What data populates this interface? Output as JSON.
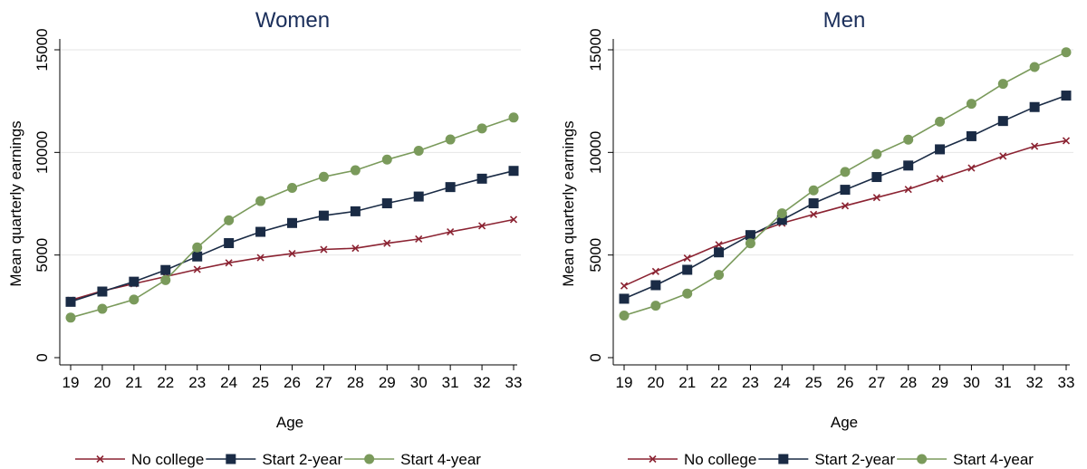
{
  "chart_data": [
    {
      "type": "line",
      "title": "Women",
      "xlabel": "Age",
      "ylabel": "Mean quarterly earnings",
      "x": [
        19,
        20,
        21,
        22,
        23,
        24,
        25,
        26,
        27,
        28,
        29,
        30,
        31,
        32,
        33
      ],
      "ylim": [
        0,
        15000
      ],
      "yticks": [
        0,
        5000,
        10000,
        15000
      ],
      "grid": true,
      "legend_position": "bottom",
      "series": [
        {
          "name": "No college",
          "marker": "x",
          "color": "#8b2332",
          "values": [
            2800,
            3250,
            3600,
            3950,
            4300,
            4620,
            4870,
            5070,
            5270,
            5330,
            5570,
            5780,
            6130,
            6420,
            6730
          ]
        },
        {
          "name": "Start 2-year",
          "marker": "square",
          "color": "#1a2b45",
          "values": [
            2720,
            3220,
            3700,
            4270,
            4930,
            5580,
            6130,
            6560,
            6920,
            7130,
            7520,
            7850,
            8310,
            8720,
            9100
          ]
        },
        {
          "name": "Start 4-year",
          "marker": "circle",
          "color": "#7a9a5b",
          "values": [
            1950,
            2380,
            2830,
            3780,
            5370,
            6690,
            7630,
            8270,
            8810,
            9130,
            9650,
            10080,
            10630,
            11170,
            11700
          ]
        }
      ]
    },
    {
      "type": "line",
      "title": "Men",
      "xlabel": "Age",
      "ylabel": "Mean quarterly earnings",
      "x": [
        19,
        20,
        21,
        22,
        23,
        24,
        25,
        26,
        27,
        28,
        29,
        30,
        31,
        32,
        33
      ],
      "ylim": [
        0,
        15000
      ],
      "yticks": [
        0,
        5000,
        10000,
        15000
      ],
      "grid": true,
      "legend_position": "bottom",
      "series": [
        {
          "name": "No college",
          "marker": "x",
          "color": "#8b2332",
          "values": [
            3500,
            4200,
            4850,
            5500,
            6000,
            6550,
            6980,
            7400,
            7800,
            8200,
            8720,
            9240,
            9820,
            10300,
            10570
          ]
        },
        {
          "name": "Start 2-year",
          "marker": "square",
          "color": "#1a2b45",
          "values": [
            2870,
            3530,
            4280,
            5130,
            5970,
            6710,
            7520,
            8180,
            8800,
            9360,
            10150,
            10790,
            11530,
            12210,
            12770
          ]
        },
        {
          "name": "Start 4-year",
          "marker": "circle",
          "color": "#7a9a5b",
          "values": [
            2050,
            2530,
            3120,
            4030,
            5570,
            7030,
            8150,
            9050,
            9920,
            10620,
            11500,
            12370,
            13340,
            14160,
            14880
          ]
        }
      ]
    }
  ]
}
